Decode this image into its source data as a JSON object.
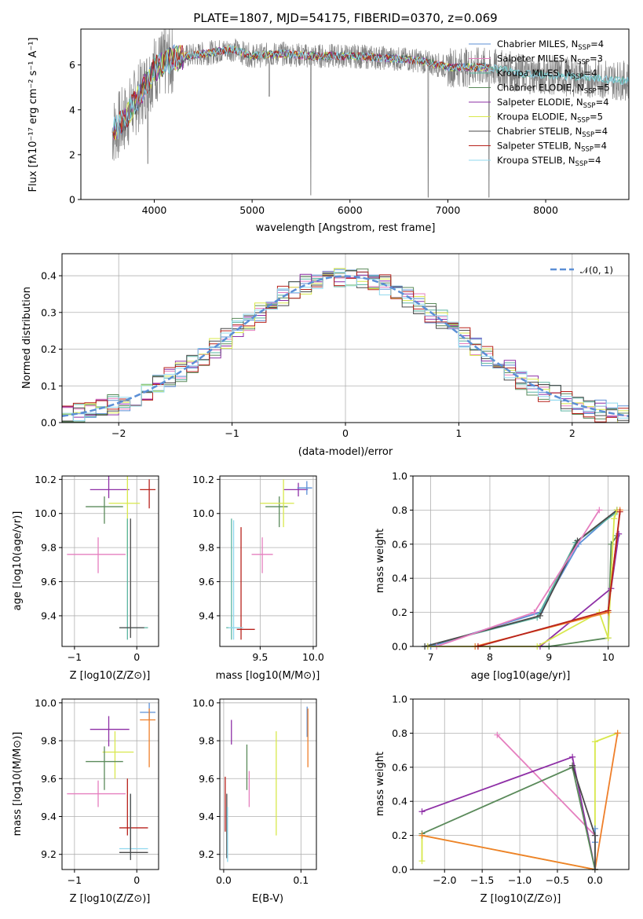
{
  "title": "PLATE=1807, MJD=54175, FIBERID=0370, z=0.069",
  "chart_data": [
    {
      "type": "line",
      "panel": "spectrum",
      "xlabel": "wavelength [Angstrom, rest frame]",
      "ylabel": "Flux [fλ10⁻¹⁷ erg cm⁻² s⁻¹ A⁻¹]",
      "xlim": [
        3250,
        8850
      ],
      "ylim": [
        0,
        7.6
      ],
      "xticks": [
        "4000",
        "5000",
        "6000",
        "7000",
        "8000"
      ],
      "yticks": [
        "0",
        "2",
        "4",
        "6"
      ],
      "grid": false,
      "legend_position": "right",
      "data_color": "#808080",
      "data_shape": [
        [
          3570,
          3.0
        ],
        [
          3700,
          3.6
        ],
        [
          3900,
          5.0
        ],
        [
          4000,
          5.8
        ],
        [
          4200,
          6.3
        ],
        [
          4500,
          6.5
        ],
        [
          4800,
          6.7
        ],
        [
          5000,
          6.4
        ],
        [
          5300,
          6.5
        ],
        [
          5600,
          6.4
        ],
        [
          6000,
          6.4
        ],
        [
          6400,
          6.3
        ],
        [
          6700,
          6.2
        ],
        [
          7000,
          5.9
        ],
        [
          7400,
          5.9
        ],
        [
          7800,
          5.6
        ],
        [
          8200,
          5.5
        ],
        [
          8800,
          5.3
        ]
      ],
      "absorption_lines": [
        [
          3934,
          1.6
        ],
        [
          5175,
          4.6
        ],
        [
          5600,
          0.2
        ],
        [
          6800,
          0.1
        ],
        [
          7420,
          0.1
        ]
      ],
      "series": [
        {
          "name": "Chabrier MILES, N",
          "sub": "SSP",
          "tail": "=4",
          "color": "#5b8fd6"
        },
        {
          "name": "Salpeter MILES, N",
          "sub": "SSP",
          "tail": "=3",
          "color": "#e57fbf"
        },
        {
          "name": "Kroupa MILES, N",
          "sub": "SSP",
          "tail": "=4",
          "color": "#5ab4a0"
        },
        {
          "name": "Chabrier ELODIE, N",
          "sub": "SSP",
          "tail": "=5",
          "color": "#5a8a5a"
        },
        {
          "name": "Salpeter ELODIE, N",
          "sub": "SSP",
          "tail": "=4",
          "color": "#8e2fa6"
        },
        {
          "name": "Kroupa ELODIE, N",
          "sub": "SSP",
          "tail": "=5",
          "color": "#d8e84c"
        },
        {
          "name": "Chabrier STELIB, N",
          "sub": "SSP",
          "tail": "=4",
          "color": "#4a4a4a"
        },
        {
          "name": "Salpeter STELIB, N",
          "sub": "SSP",
          "tail": "=4",
          "color": "#b8221c"
        },
        {
          "name": "Kroupa STELIB, N",
          "sub": "SSP",
          "tail": "=4",
          "color": "#8fd8ee"
        }
      ]
    },
    {
      "type": "step",
      "panel": "residuals",
      "xlabel": "(data-model)/error",
      "ylabel": "Normed distribution",
      "xlim": [
        -2.5,
        2.5
      ],
      "ylim": [
        0,
        0.46
      ],
      "xticks": [
        "−2",
        "−1",
        "0",
        "1",
        "2"
      ],
      "yticks": [
        "0.0",
        "0.1",
        "0.2",
        "0.3",
        "0.4"
      ],
      "grid": true,
      "bin_width": 0.1,
      "gaussian_label": "𝒩(0, 1)",
      "gaussian_color": "#5b8fd6",
      "legend_position": "top-right"
    },
    {
      "type": "scatter",
      "panel": "age-vs-Z",
      "xlabel": "Z [log10(Z/Z⊙)]",
      "ylabel": "age  [log10(age/yr)]",
      "xlim": [
        -1.2,
        0.35
      ],
      "ylim": [
        9.22,
        10.22
      ],
      "xticks": [
        "−1",
        "0"
      ],
      "yticks": [
        "9.4",
        "9.6",
        "9.8",
        "10.0",
        "10.2"
      ],
      "grid": true,
      "points": [
        {
          "c": "#8e2fa6",
          "x": -0.45,
          "y": 10.14,
          "xe": [
            -0.75,
            -0.12
          ],
          "ye": [
            10.09,
            10.22
          ]
        },
        {
          "c": "#5a8a5a",
          "x": -0.52,
          "y": 10.04,
          "xe": [
            -0.82,
            -0.22
          ],
          "ye": [
            9.94,
            10.1
          ]
        },
        {
          "c": "#d8e84c",
          "x": -0.15,
          "y": 10.06,
          "xe": [
            -0.45,
            0.05
          ],
          "ye": [
            9.75,
            10.22
          ]
        },
        {
          "c": "#b8221c",
          "x": 0.2,
          "y": 10.14,
          "xe": [
            0.05,
            0.3
          ],
          "ye": [
            10.03,
            10.2
          ]
        },
        {
          "c": "#e57fbf",
          "x": -0.62,
          "y": 9.76,
          "xe": [
            -1.12,
            -0.18
          ],
          "ye": [
            9.65,
            9.86
          ]
        },
        {
          "c": "#5ab4a0",
          "x": -0.15,
          "y": 9.33,
          "xe": [
            -0.28,
            0.18
          ],
          "ye": [
            9.26,
            9.97
          ]
        },
        {
          "c": "#4a4a4a",
          "x": -0.1,
          "y": 9.33,
          "xe": [
            -0.28,
            0.12
          ],
          "ye": [
            9.27,
            9.97
          ]
        }
      ]
    },
    {
      "type": "scatter",
      "panel": "age-vs-mass",
      "xlabel": "mass [log10(M/M⊙)]",
      "ylabel": "",
      "xlim": [
        9.12,
        10.03
      ],
      "ylim": [
        9.22,
        10.22
      ],
      "xticks": [
        "9.5",
        "10.0"
      ],
      "yticks": [
        "9.4",
        "9.6",
        "9.8",
        "10.0",
        "10.2"
      ],
      "grid": true,
      "points": [
        {
          "c": "#8e2fa6",
          "x": 9.86,
          "y": 10.14,
          "xe": [
            9.72,
            9.95
          ],
          "ye": [
            10.1,
            10.18
          ]
        },
        {
          "c": "#5b8fd6",
          "x": 9.94,
          "y": 10.15,
          "xe": [
            9.85,
            9.99
          ],
          "ye": [
            10.11,
            10.19
          ]
        },
        {
          "c": "#5a8a5a",
          "x": 9.68,
          "y": 10.04,
          "xe": [
            9.55,
            9.76
          ],
          "ye": [
            9.92,
            10.1
          ]
        },
        {
          "c": "#d8e84c",
          "x": 9.72,
          "y": 10.06,
          "xe": [
            9.5,
            9.82
          ],
          "ye": [
            9.92,
            10.2
          ]
        },
        {
          "c": "#e57fbf",
          "x": 9.52,
          "y": 9.76,
          "xe": [
            9.42,
            9.62
          ],
          "ye": [
            9.65,
            9.86
          ]
        },
        {
          "c": "#b8221c",
          "x": 9.32,
          "y": 9.32,
          "xe": [
            9.28,
            9.45
          ],
          "ye": [
            9.26,
            9.92
          ]
        },
        {
          "c": "#5ab4a0",
          "x": 9.23,
          "y": 9.33,
          "xe": [
            9.18,
            9.32
          ],
          "ye": [
            9.26,
            9.97
          ]
        },
        {
          "c": "#8fd8ee",
          "x": 9.25,
          "y": 9.33,
          "xe": [
            9.2,
            9.34
          ],
          "ye": [
            9.26,
            9.96
          ]
        }
      ]
    },
    {
      "type": "line",
      "panel": "mass-weight-vs-age",
      "xlabel": "age  [log10(age/yr)]",
      "ylabel": "mass weight",
      "xlim": [
        6.7,
        10.35
      ],
      "ylim": [
        0,
        1
      ],
      "xticks": [
        "7",
        "8",
        "9",
        "10"
      ],
      "yticks": [
        "0.0",
        "0.2",
        "0.4",
        "0.6",
        "0.8",
        "1.0"
      ],
      "grid": true
    },
    {
      "type": "scatter",
      "panel": "mass-vs-Z",
      "xlabel": "Z [log10(Z/Z⊙)]",
      "ylabel": "mass [log10(M/M⊙)]",
      "xlim": [
        -1.2,
        0.35
      ],
      "ylim": [
        9.12,
        10.02
      ],
      "xticks": [
        "−1",
        "0"
      ],
      "yticks": [
        "9.2",
        "9.4",
        "9.6",
        "9.8",
        "10.0"
      ],
      "grid": true,
      "points": [
        {
          "c": "#5b8fd6",
          "x": 0.2,
          "y": 9.95,
          "xe": [
            0.05,
            0.3
          ],
          "ye": [
            9.91,
            10.0
          ]
        },
        {
          "c": "#ef7f2a",
          "x": 0.2,
          "y": 9.91,
          "xe": [
            0.05,
            0.3
          ],
          "ye": [
            9.66,
            9.97
          ]
        },
        {
          "c": "#8e2fa6",
          "x": -0.45,
          "y": 9.86,
          "xe": [
            -0.75,
            -0.12
          ],
          "ye": [
            9.77,
            9.93
          ]
        },
        {
          "c": "#d8e84c",
          "x": -0.35,
          "y": 9.74,
          "xe": [
            -0.55,
            -0.05
          ],
          "ye": [
            9.6,
            9.85
          ]
        },
        {
          "c": "#5a8a5a",
          "x": -0.52,
          "y": 9.69,
          "xe": [
            -0.82,
            -0.22
          ],
          "ye": [
            9.54,
            9.77
          ]
        },
        {
          "c": "#e57fbf",
          "x": -0.62,
          "y": 9.52,
          "xe": [
            -1.12,
            -0.18
          ],
          "ye": [
            9.45,
            9.59
          ]
        },
        {
          "c": "#b8221c",
          "x": -0.15,
          "y": 9.34,
          "xe": [
            -0.28,
            0.18
          ],
          "ye": [
            9.3,
            9.6
          ]
        },
        {
          "c": "#8fd8ee",
          "x": -0.1,
          "y": 9.23,
          "xe": [
            -0.28,
            0.18
          ],
          "ye": [
            9.18,
            9.52
          ]
        },
        {
          "c": "#4a4a4a",
          "x": -0.1,
          "y": 9.21,
          "xe": [
            -0.28,
            0.18
          ],
          "ye": [
            9.17,
            9.52
          ]
        }
      ]
    },
    {
      "type": "scatter",
      "panel": "mass-vs-EBV",
      "xlabel": "E(B-V)",
      "ylabel": "",
      "xlim": [
        -0.005,
        0.12
      ],
      "ylim": [
        9.12,
        10.02
      ],
      "xticks": [
        "0.0",
        "0.1"
      ],
      "yticks": [
        "9.2",
        "9.4",
        "9.6",
        "9.8",
        "10.0"
      ],
      "grid": true,
      "points": [
        {
          "c": "#5b8fd6",
          "x": 0.108,
          "y": 9.9,
          "ye": [
            9.82,
            9.98
          ]
        },
        {
          "c": "#ef7f2a",
          "x": 0.109,
          "y": 9.86,
          "ye": [
            9.66,
            9.97
          ]
        },
        {
          "c": "#8e2fa6",
          "x": 0.01,
          "y": 9.86,
          "ye": [
            9.78,
            9.91
          ]
        },
        {
          "c": "#d8e84c",
          "x": 0.068,
          "y": 9.6,
          "ye": [
            9.3,
            9.85
          ]
        },
        {
          "c": "#5a8a5a",
          "x": 0.03,
          "y": 9.66,
          "ye": [
            9.54,
            9.78
          ]
        },
        {
          "c": "#e57fbf",
          "x": 0.033,
          "y": 9.54,
          "ye": [
            9.45,
            9.64
          ]
        },
        {
          "c": "#b8221c",
          "x": 0.002,
          "y": 9.45,
          "ye": [
            9.32,
            9.61
          ]
        },
        {
          "c": "#4a4a4a",
          "x": 0.004,
          "y": 9.3,
          "ye": [
            9.18,
            9.52
          ]
        },
        {
          "c": "#8fd8ee",
          "x": 0.005,
          "y": 9.26,
          "ye": [
            9.16,
            9.45
          ]
        }
      ]
    },
    {
      "type": "line",
      "panel": "mass-weight-vs-Z",
      "xlabel": "Z [log10(Z/Z⊙)]",
      "ylabel": "mass weight",
      "xlim": [
        -2.42,
        0.45
      ],
      "ylim": [
        0,
        1
      ],
      "xticks": [
        "−2.0",
        "−1.5",
        "−1.0",
        "−0.5",
        "0.0"
      ],
      "yticks": [
        "0.0",
        "0.2",
        "0.4",
        "0.6",
        "0.8",
        "1.0"
      ],
      "grid": true
    }
  ]
}
